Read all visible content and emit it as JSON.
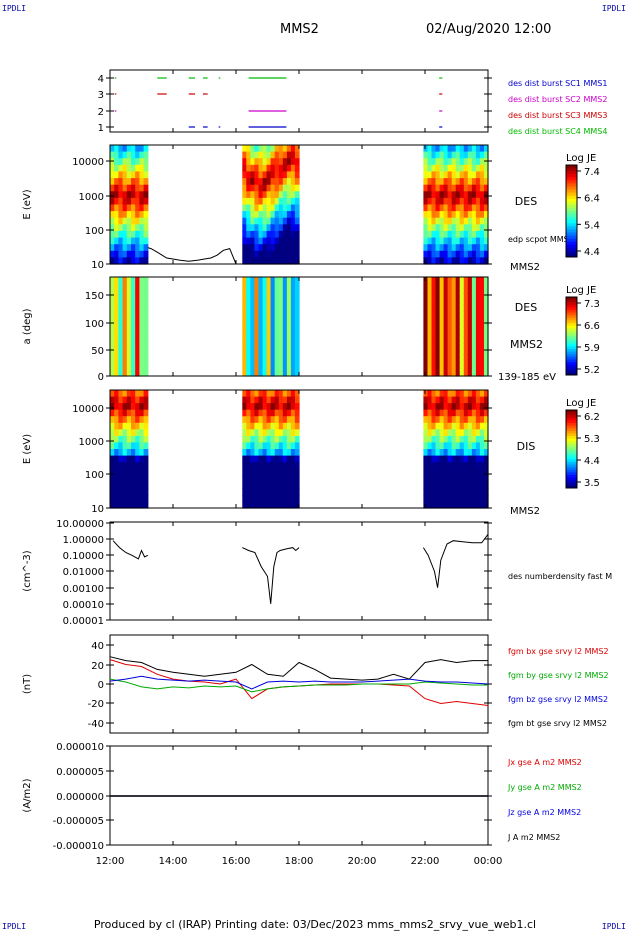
{
  "corners": {
    "tl": "IPDLI",
    "tr": "IPDLI",
    "bl": "IPDLI",
    "br": "IPDLI"
  },
  "header": {
    "spacecraft": "MMS2",
    "datetime": "02/Aug/2020 12:00"
  },
  "footer": "Produced by cl (IRAP)   Printing date: 03/Dec/2023   mms_mms2_srvy_vue_web1.cl",
  "colors": {
    "mms1": "#0000cc",
    "mms2": "#cc00cc",
    "mms3": "#cc0000",
    "mms4": "#00bb00",
    "x": "#dd0000",
    "y": "#00aa00",
    "z": "#0000dd",
    "t": "#000000"
  },
  "chart_data": [
    {
      "type": "scatter",
      "panel": "burst",
      "yticks": [
        "4",
        "3",
        "2",
        "1"
      ],
      "legend": [
        {
          "text": "des dist burst SC1 MMS1",
          "color": "#0000cc"
        },
        {
          "text": "des dist burst SC2 MMS2",
          "color": "#cc00cc"
        },
        {
          "text": "des dist burst SC3 MMS3",
          "color": "#cc0000"
        },
        {
          "text": "des dist burst SC4 MMS4",
          "color": "#00bb00"
        }
      ],
      "segments": [
        {
          "level": 4,
          "color": "#00bb00",
          "hours": [
            [
              12.15,
              12.2
            ],
            [
              13.5,
              13.8
            ],
            [
              14.5,
              14.7
            ],
            [
              14.95,
              15.1
            ],
            [
              15.45,
              15.5
            ],
            [
              16.4,
              17.6
            ],
            [
              22.45,
              22.55
            ]
          ]
        },
        {
          "level": 3,
          "color": "#cc0000",
          "hours": [
            [
              12.15,
              12.2
            ],
            [
              13.5,
              13.8
            ],
            [
              14.5,
              14.7
            ],
            [
              14.95,
              15.1
            ],
            [
              22.45,
              22.55
            ]
          ]
        },
        {
          "level": 2,
          "color": "#cc00cc",
          "hours": [
            [
              12.15,
              12.2
            ],
            [
              16.4,
              17.6
            ],
            [
              22.45,
              22.55
            ]
          ]
        },
        {
          "level": 1,
          "color": "#0000cc",
          "hours": [
            [
              14.5,
              14.7
            ],
            [
              14.95,
              15.1
            ],
            [
              15.45,
              15.5
            ],
            [
              16.4,
              17.6
            ],
            [
              22.45,
              22.55
            ]
          ]
        }
      ]
    },
    {
      "type": "heatmap",
      "panel": "des_energy",
      "ylabel": "E (eV)",
      "yticks": [
        "10000",
        "1000",
        "100",
        "10"
      ],
      "ylim": [
        10,
        30000
      ],
      "right_label": "DES",
      "right_label2": "edp scpot MMS2",
      "right_bottom": "MMS2",
      "colorbar": {
        "title": "Log JE",
        "ticks": [
          "7.4",
          "6.4",
          "5.4",
          "4.4"
        ]
      },
      "blocks": [
        [
          12.0,
          13.2
        ],
        [
          16.2,
          18.0
        ],
        [
          21.95,
          24.0
        ]
      ],
      "overlay_line": {
        "color": "#000000",
        "x": [
          13.2,
          13.3,
          13.5,
          13.8,
          14.0,
          14.2,
          14.5,
          14.8,
          15.0,
          15.2,
          15.4,
          15.6,
          15.8,
          16.0
        ],
        "y": [
          30,
          28,
          22,
          15,
          14,
          13,
          12,
          13,
          14,
          15,
          18,
          25,
          28,
          10
        ]
      }
    },
    {
      "type": "heatmap",
      "panel": "des_pitch",
      "ylabel": "a (deg)",
      "yticks": [
        "150",
        "100",
        "50",
        "0"
      ],
      "ylim": [
        0,
        180
      ],
      "right_label": "DES",
      "right_label2": "MMS2",
      "right_bottom": "139-185 eV",
      "colorbar": {
        "title": "Log JE",
        "ticks": [
          "7.3",
          "6.6",
          "5.9",
          "5.2"
        ]
      },
      "blocks": [
        [
          12.0,
          13.2
        ],
        [
          16.2,
          18.0
        ],
        [
          21.95,
          24.0
        ]
      ]
    },
    {
      "type": "heatmap",
      "panel": "dis_energy",
      "ylabel": "E (eV)",
      "yticks": [
        "10000",
        "1000",
        "100",
        "10"
      ],
      "ylim": [
        10,
        30000
      ],
      "right_label": "DIS",
      "right_bottom": "MMS2",
      "colorbar": {
        "title": "Log JE",
        "ticks": [
          "6.2",
          "5.3",
          "4.4",
          "3.5"
        ]
      },
      "blocks": [
        [
          12.0,
          13.2
        ],
        [
          16.2,
          18.0
        ],
        [
          21.95,
          24.0
        ]
      ]
    },
    {
      "type": "line",
      "panel": "density",
      "ylabel": "(cm^-3)",
      "yticks": [
        "10.00000",
        "1.00000",
        "0.10000",
        "0.01000",
        "0.00100",
        "0.00010",
        "0.00001"
      ],
      "legend": [
        {
          "text": "des numberdensity fast M",
          "color": "#000000"
        }
      ],
      "series": [
        {
          "name": "des numberdensity fast M",
          "color": "#000000",
          "segments": [
            {
              "x": [
                12.1,
                12.3,
                12.5,
                12.7,
                12.9,
                13.0,
                13.1,
                13.2
              ],
              "y": [
                0.8,
                0.3,
                0.15,
                0.1,
                0.06,
                0.2,
                0.08,
                0.1
              ]
            },
            {
              "x": [
                16.2,
                16.4,
                16.6,
                16.8,
                17.0,
                17.1,
                17.2,
                17.3,
                17.4,
                17.6,
                17.8,
                17.9,
                18.0
              ],
              "y": [
                0.3,
                0.2,
                0.15,
                0.02,
                0.005,
                0.0001,
                0.02,
                0.15,
                0.2,
                0.25,
                0.3,
                0.2,
                0.3
              ]
            },
            {
              "x": [
                21.95,
                22.1,
                22.3,
                22.4,
                22.5,
                22.7,
                22.9,
                23.2,
                23.5,
                23.8,
                24.0
              ],
              "y": [
                0.3,
                0.1,
                0.01,
                0.001,
                0.05,
                0.5,
                0.8,
                0.7,
                0.6,
                0.6,
                2.0
              ]
            }
          ]
        }
      ]
    },
    {
      "type": "line",
      "panel": "bfield",
      "ylabel": "(nT)",
      "yticks": [
        "40",
        "20",
        "0",
        "-20",
        "-40"
      ],
      "ylim": [
        -50,
        50
      ],
      "x": [
        12.0,
        12.5,
        13.0,
        13.5,
        14.0,
        14.5,
        15.0,
        15.5,
        16.0,
        16.5,
        17.0,
        17.5,
        18.0,
        18.5,
        19.0,
        19.5,
        20.0,
        20.5,
        21.0,
        21.5,
        22.0,
        22.5,
        23.0,
        23.5,
        24.0
      ],
      "series": [
        {
          "name": "fgm bx gse srvy l2 MMS2",
          "color": "#dd0000",
          "values": [
            25,
            20,
            18,
            10,
            5,
            3,
            2,
            0,
            5,
            -15,
            -5,
            -3,
            -2,
            -1,
            0,
            0,
            0,
            0,
            -1,
            -2,
            -15,
            -20,
            -18,
            -20,
            -22
          ]
        },
        {
          "name": "fgm by gse srvy l2 MMS2",
          "color": "#00aa00",
          "values": [
            5,
            2,
            -3,
            -5,
            -3,
            -4,
            -2,
            -3,
            -2,
            -8,
            -5,
            -3,
            -2,
            -1,
            -1,
            -1,
            0,
            0,
            0,
            0,
            2,
            1,
            0,
            -1,
            -1
          ]
        },
        {
          "name": "fgm bz gse srvy l2 MMS2",
          "color": "#0000dd",
          "values": [
            3,
            5,
            8,
            5,
            4,
            3,
            4,
            3,
            2,
            -5,
            2,
            3,
            2,
            3,
            2,
            2,
            2,
            3,
            4,
            5,
            3,
            2,
            2,
            1,
            0
          ]
        },
        {
          "name": "fgm bt gse srvy l2 MMS2",
          "color": "#000000",
          "values": [
            28,
            24,
            22,
            15,
            12,
            10,
            8,
            10,
            12,
            20,
            10,
            8,
            22,
            15,
            6,
            5,
            4,
            5,
            10,
            5,
            22,
            25,
            22,
            24,
            24
          ]
        }
      ]
    },
    {
      "type": "line",
      "panel": "current",
      "ylabel": "(A/m2)",
      "yticks": [
        "0.000010",
        "0.000005",
        "0.000000",
        "-0.000005",
        "-0.000010"
      ],
      "ylim": [
        -1e-05,
        1e-05
      ],
      "x": [
        12.0,
        24.0
      ],
      "series": [
        {
          "name": "Jx gse A m2 MMS2",
          "color": "#dd0000",
          "values": [
            0,
            0
          ]
        },
        {
          "name": "Jy gse A m2 MMS2",
          "color": "#00aa00",
          "values": [
            0,
            0
          ]
        },
        {
          "name": "Jz gse A m2 MMS2",
          "color": "#0000dd",
          "values": [
            0,
            0
          ]
        },
        {
          "name": "J A m2 MMS2",
          "color": "#000000",
          "values": [
            0,
            0
          ]
        }
      ]
    }
  ],
  "xaxis": {
    "ticks": [
      "12:00",
      "14:00",
      "16:00",
      "18:00",
      "20:00",
      "22:00",
      "00:00"
    ]
  }
}
